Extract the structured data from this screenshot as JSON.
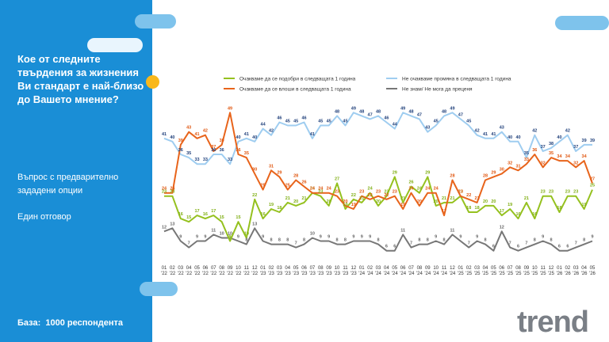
{
  "title": "Кое от следните твърдения за жизнения Ви стандарт е най-близо до Вашето мнение?",
  "question_type": "Въпрос с предварително зададени опции",
  "answer_type": "Един отговор",
  "base": "База:  1000 респондента",
  "logo": "trend",
  "chart_data": {
    "type": "line",
    "categories": [
      "01\n'22",
      "02\n'22",
      "03\n'22",
      "04\n'22",
      "05\n'22",
      "06\n'22",
      "07\n'22",
      "08\n'22",
      "09\n'22",
      "10\n'22",
      "11\n'22",
      "12\n'22",
      "01\n'23",
      "02\n'23",
      "03\n'23",
      "04\n'23",
      "05\n'23",
      "06\n'23",
      "07\n'23",
      "08\n'23",
      "09\n'23",
      "10\n'23",
      "11\n'23",
      "12\n'23",
      "01\n'24",
      "02\n'24",
      "03\n'24",
      "04\n'24",
      "05\n'24",
      "06\n'24",
      "07\n'24",
      "08\n'24",
      "09\n'24",
      "10\n'24",
      "11\n'24",
      "12\n'24",
      "01\n'25",
      "02\n'25",
      "03\n'25",
      "04\n'25",
      "05\n'25",
      "06\n'25",
      "07\n'25",
      "08\n'25",
      "09\n'25",
      "10\n'25",
      "11\n'25",
      "12\n'25",
      "01\n'26",
      "02\n'26",
      "03\n'26",
      "04\n'26",
      "05\n'26"
    ],
    "ylim": [
      0,
      55
    ],
    "series": [
      {
        "name": "Очакваме да се подобри в следващата 1 година",
        "color": "#95c11f",
        "label_color": "#7fae12",
        "values": [
          23,
          23,
          16,
          15,
          17,
          16,
          17,
          15,
          9,
          15,
          10,
          22,
          16,
          19,
          18,
          21,
          20,
          21,
          24,
          23,
          20,
          27,
          19,
          22,
          21,
          24,
          20,
          23,
          29,
          21,
          26,
          24,
          29,
          20,
          21,
          21,
          23,
          18,
          18,
          20,
          20,
          17,
          19,
          16,
          21,
          16,
          23,
          23,
          18,
          23,
          23,
          19,
          25
        ]
      },
      {
        "name": "Не очакваме промяна в следващата 1 година",
        "color": "#9fcdf0",
        "label_color": "#1f3f7a",
        "values": [
          41,
          40,
          36,
          35,
          33,
          33,
          36,
          36,
          33,
          40,
          41,
          40,
          44,
          42,
          46,
          45,
          45,
          46,
          41,
          45,
          45,
          48,
          45,
          49,
          48,
          47,
          48,
          46,
          44,
          49,
          48,
          47,
          43,
          45,
          48,
          49,
          47,
          45,
          42,
          41,
          41,
          43,
          40,
          40,
          35,
          42,
          37,
          38,
          40,
          42,
          37,
          39,
          39
        ]
      },
      {
        "name": "Очакваме да се влоши в следващата 1 година",
        "color": "#e8641b",
        "label_color": "#e0560f",
        "values": [
          24,
          24,
          39,
          43,
          41,
          42,
          37,
          39,
          49,
          36,
          35,
          30,
          25,
          31,
          29,
          25,
          28,
          26,
          24,
          24,
          24,
          23,
          20,
          19,
          23,
          22,
          23,
          22,
          23,
          19,
          24,
          20,
          24,
          24,
          17,
          28,
          23,
          22,
          21,
          28,
          29,
          30,
          32,
          31,
          33,
          36,
          32,
          35,
          34,
          34,
          32,
          34,
          27
        ]
      },
      {
        "name": "Не знам/ Не мога да преценя",
        "color": "#777777",
        "label_color": "#666666",
        "values": [
          12,
          13,
          9,
          7,
          9,
          9,
          11,
          10,
          10,
          9,
          8,
          13,
          9,
          8,
          8,
          8,
          7,
          8,
          10,
          9,
          9,
          8,
          8,
          9,
          9,
          9,
          8,
          6,
          6,
          11,
          7,
          8,
          8,
          9,
          8,
          11,
          9,
          7,
          9,
          8,
          6,
          12,
          7,
          6,
          7,
          8,
          9,
          8,
          6,
          6,
          7,
          8,
          9
        ]
      }
    ]
  }
}
